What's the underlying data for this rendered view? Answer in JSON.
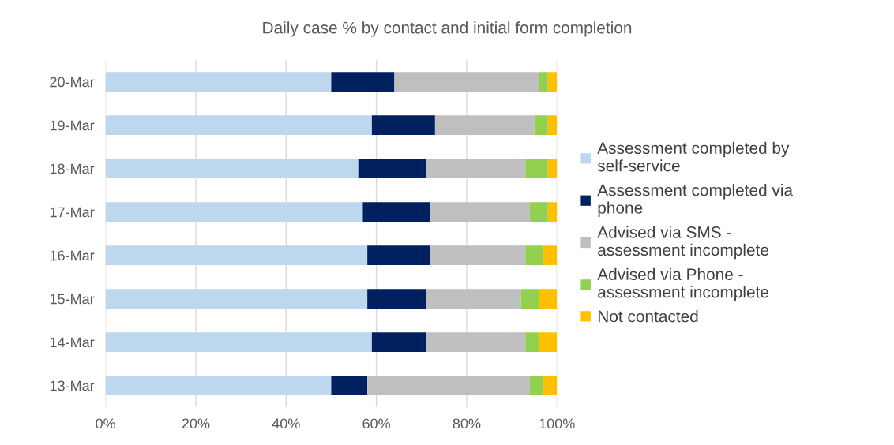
{
  "chart_data": {
    "type": "bar",
    "orientation": "horizontal",
    "stacked": true,
    "title": "Daily case % by contact and initial form completion",
    "categories": [
      "20-Mar",
      "19-Mar",
      "18-Mar",
      "17-Mar",
      "16-Mar",
      "15-Mar",
      "14-Mar",
      "13-Mar"
    ],
    "series": [
      {
        "name": "Assessment completed by self-service",
        "color": "#bdd7ee",
        "values": [
          50,
          59,
          56,
          57,
          58,
          58,
          59,
          50
        ]
      },
      {
        "name": "Assessment completed via phone",
        "color": "#002060",
        "values": [
          14,
          14,
          15,
          15,
          14,
          13,
          12,
          8
        ]
      },
      {
        "name": "Advised via SMS - assessment incomplete",
        "color": "#bfbfbf",
        "values": [
          32,
          22,
          22,
          22,
          21,
          21,
          22,
          36
        ]
      },
      {
        "name": "Advised via Phone - assessment incomplete",
        "color": "#92d050",
        "values": [
          2,
          3,
          5,
          4,
          4,
          4,
          3,
          3
        ]
      },
      {
        "name": "Not contacted",
        "color": "#ffc000",
        "values": [
          2,
          2,
          2,
          2,
          3,
          4,
          4,
          3
        ]
      }
    ],
    "xlim": [
      0,
      100
    ],
    "xticks": [
      {
        "value": 0,
        "label": "0%"
      },
      {
        "value": 20,
        "label": "20%"
      },
      {
        "value": 40,
        "label": "40%"
      },
      {
        "value": 60,
        "label": "60%"
      },
      {
        "value": 80,
        "label": "80%"
      },
      {
        "value": 100,
        "label": "100%"
      }
    ],
    "grid": "x",
    "legend": "right"
  }
}
